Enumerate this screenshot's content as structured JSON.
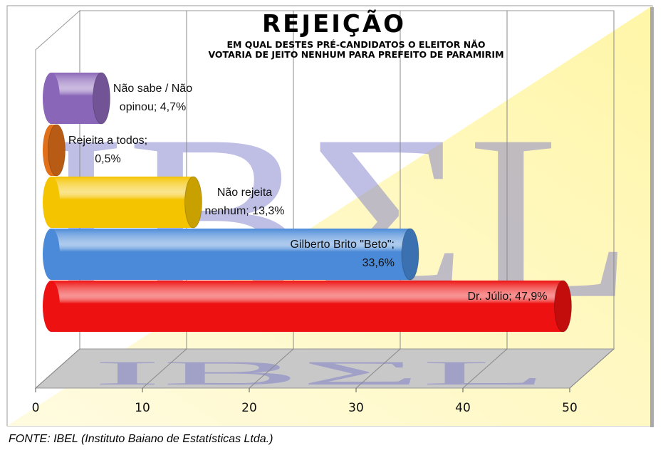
{
  "chart_data": {
    "type": "bar3d",
    "title": "REJEIÇÃO",
    "subtitle": "EM QUAL DESTES PRÉ-CANDIDATOS O ELEITOR NÃO VOTARIA DE JEITO NENHUM PARA PREFEITO DE PARAMIRIM",
    "watermark": "IBΣL",
    "source": "FONTE: IBEL (Instituto Baiano de Estatísticas Ltda.)",
    "values": [
      47.9,
      33.6,
      13.3,
      0.5,
      4.7
    ],
    "value_labels": [
      "Dr. Júlio; 47,9%",
      "Gilberto Brito \"Beto\"; 33,6%",
      "Não rejeita nenhum; 13,3%",
      "Rejeita a todos; 0,5%",
      "Não sabe / Não opinou; 4,7%"
    ],
    "colors": [
      "#ee1111",
      "#4a8ad8",
      "#f5c400",
      "#e0701a",
      "#8a66b8"
    ],
    "xlim": [
      0,
      50
    ],
    "xticks": [
      0,
      10,
      20,
      30,
      40,
      50
    ],
    "grid": true
  }
}
